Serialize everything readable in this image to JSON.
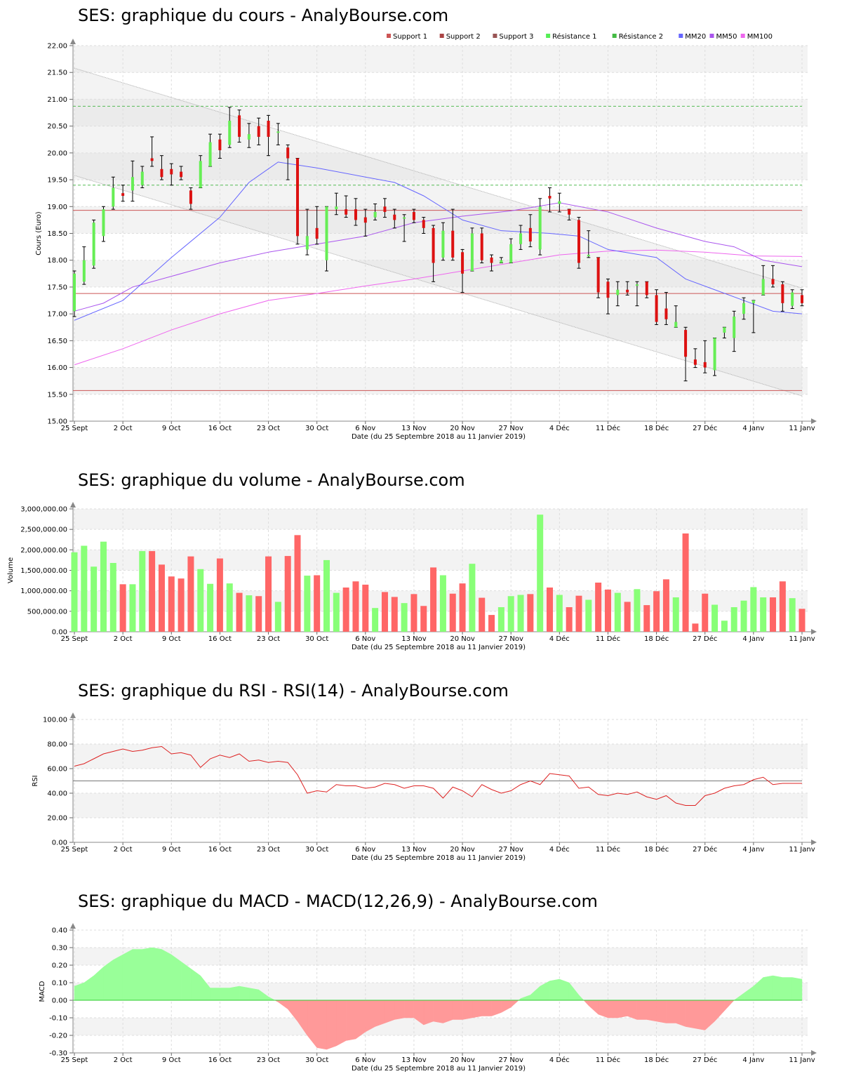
{
  "colors": {
    "up": "#66ee55",
    "down": "#dd1111",
    "vol_up": "#88ff77",
    "vol_down": "#ff6666",
    "support": "#cc5555",
    "resistance": "#55bb55",
    "mm20": "#6666ff",
    "mm50": "#aa55ee",
    "mm100": "#ee66ee",
    "rsi": "#dd2222",
    "macd_pos": "#99ff99",
    "macd_neg": "#ff9999"
  },
  "x_ticks": [
    "25 Sept",
    "2 Oct",
    "9 Oct",
    "16 Oct",
    "23 Oct",
    "30 Oct",
    "6 Nov",
    "13 Nov",
    "20 Nov",
    "27 Nov",
    "4 Déc",
    "11 Déc",
    "18 Déc",
    "27 Déc",
    "4 Janv",
    "11 Janv"
  ],
  "x_tick_days": [
    0,
    5,
    10,
    15,
    20,
    25,
    30,
    35,
    40,
    45,
    50,
    55,
    60,
    65,
    70,
    75
  ],
  "x_label": "Date (du 25 Septembre 2018 au 11 Janvier 2019)",
  "price": {
    "title": "SES: graphique du cours - AnalyBourse.com",
    "ylabel": "Cours (Euro)",
    "legend": [
      {
        "label": "Support 1",
        "color": "#cc5555"
      },
      {
        "label": "Support 2",
        "color": "#aa4444"
      },
      {
        "label": "Support 3",
        "color": "#995555"
      },
      {
        "label": "Résistance 1",
        "color": "#55ee55"
      },
      {
        "label": "Résistance 2",
        "color": "#44bb44"
      },
      {
        "label": "MM20",
        "color": "#6666ff"
      },
      {
        "label": "MM50",
        "color": "#aa55ee"
      },
      {
        "label": "MM100",
        "color": "#ee66ee"
      }
    ]
  },
  "volume": {
    "title": "SES: graphique du volume - AnalyBourse.com",
    "ylabel": "Volume"
  },
  "rsi": {
    "title": "SES: graphique du RSI - RSI(14) - AnalyBourse.com",
    "ylabel": "RSI"
  },
  "macd": {
    "title": "SES: graphique du MACD - MACD(12,26,9) - AnalyBourse.com",
    "ylabel": "MACD"
  },
  "chart_data": [
    {
      "type": "candlestick",
      "title": "SES: graphique du cours - AnalyBourse.com",
      "xlabel": "Date (du 25 Septembre 2018 au 11 Janvier 2019)",
      "ylabel": "Cours (Euro)",
      "ylim": [
        15.0,
        22.0
      ],
      "y_ticks": [
        "15.00",
        "15.50",
        "16.00",
        "16.50",
        "17.00",
        "17.50",
        "18.00",
        "18.50",
        "19.00",
        "19.50",
        "20.00",
        "20.50",
        "21.00",
        "21.50",
        "22.00"
      ],
      "candles": [
        [
          17.05,
          17.75,
          17.8,
          16.95
        ],
        [
          17.6,
          18.0,
          18.25,
          17.55
        ],
        [
          17.9,
          18.7,
          18.75,
          17.85
        ],
        [
          18.45,
          18.95,
          19.0,
          18.35
        ],
        [
          19.0,
          19.35,
          19.55,
          18.95
        ],
        [
          19.25,
          19.2,
          19.4,
          19.1
        ],
        [
          19.3,
          19.55,
          19.85,
          19.1
        ],
        [
          19.4,
          19.65,
          19.75,
          19.35
        ],
        [
          19.9,
          19.85,
          20.3,
          19.75
        ],
        [
          19.7,
          19.55,
          19.95,
          19.5
        ],
        [
          19.7,
          19.6,
          19.8,
          19.4
        ],
        [
          19.65,
          19.55,
          19.75,
          19.5
        ],
        [
          19.3,
          19.05,
          19.35,
          18.95
        ],
        [
          19.35,
          19.85,
          19.95,
          19.35
        ],
        [
          19.75,
          20.2,
          20.35,
          19.75
        ],
        [
          20.25,
          20.05,
          20.35,
          19.9
        ],
        [
          20.15,
          20.6,
          20.85,
          20.1
        ],
        [
          20.7,
          20.3,
          20.8,
          20.2
        ],
        [
          20.25,
          20.35,
          20.55,
          20.1
        ],
        [
          20.5,
          20.3,
          20.65,
          20.15
        ],
        [
          20.6,
          20.3,
          20.7,
          19.95
        ],
        [
          20.4,
          20.4,
          20.55,
          20.15
        ],
        [
          20.1,
          19.9,
          20.15,
          19.5
        ],
        [
          19.9,
          18.45,
          19.9,
          18.3
        ],
        [
          18.2,
          18.45,
          18.95,
          18.1
        ],
        [
          18.6,
          18.4,
          19.0,
          18.3
        ],
        [
          18.0,
          19.0,
          19.0,
          17.8
        ],
        [
          18.95,
          19.0,
          19.25,
          18.85
        ],
        [
          18.95,
          18.85,
          19.2,
          18.8
        ],
        [
          18.95,
          18.75,
          19.15,
          18.65
        ],
        [
          18.8,
          18.7,
          18.95,
          18.45
        ],
        [
          18.8,
          18.9,
          19.05,
          18.75
        ],
        [
          19.0,
          18.9,
          19.15,
          18.8
        ],
        [
          18.85,
          18.75,
          18.95,
          18.6
        ],
        [
          18.8,
          18.8,
          18.85,
          18.35
        ],
        [
          18.9,
          18.75,
          18.95,
          18.7
        ],
        [
          18.75,
          18.6,
          18.8,
          18.5
        ],
        [
          18.6,
          17.95,
          18.65,
          17.6
        ],
        [
          18.05,
          18.55,
          18.7,
          18.0
        ],
        [
          18.55,
          18.05,
          18.95,
          18.0
        ],
        [
          18.15,
          17.75,
          18.2,
          17.4
        ],
        [
          17.8,
          18.5,
          18.6,
          17.8
        ],
        [
          18.5,
          18.0,
          18.6,
          17.95
        ],
        [
          18.05,
          17.95,
          18.1,
          17.8
        ],
        [
          17.95,
          18.0,
          18.05,
          17.95
        ],
        [
          17.95,
          18.3,
          18.4,
          17.95
        ],
        [
          18.3,
          18.5,
          18.65,
          18.2
        ],
        [
          18.6,
          18.35,
          18.85,
          18.25
        ],
        [
          18.2,
          19.0,
          19.15,
          18.1
        ],
        [
          19.2,
          19.15,
          19.35,
          18.9
        ],
        [
          19.05,
          19.1,
          19.25,
          18.9
        ],
        [
          18.95,
          18.85,
          18.95,
          18.75
        ],
        [
          18.75,
          17.95,
          18.8,
          17.85
        ],
        [
          18.1,
          18.1,
          18.55,
          18.05
        ],
        [
          18.05,
          17.4,
          18.05,
          17.3
        ],
        [
          17.6,
          17.3,
          17.65,
          17.0
        ],
        [
          17.35,
          17.45,
          17.6,
          17.15
        ],
        [
          17.45,
          17.4,
          17.6,
          17.35
        ],
        [
          17.55,
          17.55,
          17.6,
          17.15
        ],
        [
          17.6,
          17.35,
          17.6,
          17.3
        ],
        [
          17.35,
          16.85,
          17.45,
          16.8
        ],
        [
          17.1,
          16.9,
          17.4,
          16.8
        ],
        [
          16.75,
          16.85,
          17.15,
          16.75
        ],
        [
          16.7,
          16.2,
          16.75,
          15.75
        ],
        [
          16.15,
          16.05,
          16.35,
          16.0
        ],
        [
          16.1,
          16.0,
          16.5,
          15.9
        ],
        [
          15.95,
          16.55,
          16.55,
          15.85
        ],
        [
          16.65,
          16.75,
          16.75,
          16.55
        ],
        [
          16.55,
          16.95,
          17.05,
          16.3
        ],
        [
          17.0,
          17.2,
          17.3,
          16.9
        ],
        [
          17.2,
          17.25,
          17.25,
          16.65
        ],
        [
          17.35,
          17.65,
          17.9,
          17.35
        ],
        [
          17.65,
          17.55,
          17.9,
          17.5
        ],
        [
          17.55,
          17.2,
          17.6,
          17.05
        ],
        [
          17.15,
          17.4,
          17.45,
          17.1
        ],
        [
          17.35,
          17.2,
          17.45,
          17.15
        ]
      ],
      "support_1": 17.38,
      "support_2": 18.93,
      "support_3": 15.57,
      "resistance_1": 19.4,
      "resistance_2": 20.87,
      "channel_upper": [
        21.58,
        17.48
      ],
      "channel_lower": [
        19.58,
        15.47
      ],
      "mm20": [
        [
          0,
          16.88
        ],
        [
          5,
          17.25
        ],
        [
          10,
          18.05
        ],
        [
          15,
          18.8
        ],
        [
          18,
          19.45
        ],
        [
          21,
          19.83
        ],
        [
          25,
          19.72
        ],
        [
          30,
          19.55
        ],
        [
          33,
          19.45
        ],
        [
          36,
          19.2
        ],
        [
          40,
          18.75
        ],
        [
          44,
          18.55
        ],
        [
          49,
          18.5
        ],
        [
          52,
          18.45
        ],
        [
          55,
          18.2
        ],
        [
          60,
          18.05
        ],
        [
          63,
          17.65
        ],
        [
          66,
          17.45
        ],
        [
          69,
          17.25
        ],
        [
          72,
          17.05
        ],
        [
          75,
          17.0
        ]
      ],
      "mm50": [
        [
          0,
          17.05
        ],
        [
          3,
          17.2
        ],
        [
          6,
          17.5
        ],
        [
          10,
          17.7
        ],
        [
          15,
          17.95
        ],
        [
          20,
          18.15
        ],
        [
          25,
          18.3
        ],
        [
          30,
          18.45
        ],
        [
          35,
          18.7
        ],
        [
          40,
          18.82
        ],
        [
          45,
          18.92
        ],
        [
          50,
          19.07
        ],
        [
          55,
          18.9
        ],
        [
          60,
          18.6
        ],
        [
          65,
          18.35
        ],
        [
          68,
          18.25
        ],
        [
          71,
          18.0
        ],
        [
          75,
          17.88
        ]
      ],
      "mm100": [
        [
          0,
          16.05
        ],
        [
          5,
          16.35
        ],
        [
          10,
          16.7
        ],
        [
          15,
          17.0
        ],
        [
          20,
          17.25
        ],
        [
          25,
          17.38
        ],
        [
          30,
          17.52
        ],
        [
          35,
          17.65
        ],
        [
          40,
          17.8
        ],
        [
          45,
          17.95
        ],
        [
          50,
          18.1
        ],
        [
          55,
          18.17
        ],
        [
          60,
          18.19
        ],
        [
          65,
          18.15
        ],
        [
          70,
          18.08
        ],
        [
          75,
          18.07
        ]
      ]
    },
    {
      "type": "bar",
      "title": "SES: graphique du volume - AnalyBourse.com",
      "xlabel": "Date (du 25 Septembre 2018 au 11 Janvier 2019)",
      "ylabel": "Volume",
      "ylim": [
        0,
        3000000
      ],
      "y_ticks": [
        "0.00",
        "500,000.00",
        "1,000,000.00",
        "1,500,000.00",
        "2,000,000.00",
        "2,500,000.00",
        "3,000,000.00"
      ],
      "values": [
        1940000,
        2100000,
        1590000,
        2200000,
        1680000,
        1160000,
        1160000,
        1970000,
        1970000,
        1640000,
        1350000,
        1300000,
        1840000,
        1530000,
        1170000,
        1790000,
        1180000,
        950000,
        890000,
        870000,
        1840000,
        730000,
        1850000,
        2360000,
        1370000,
        1380000,
        1750000,
        950000,
        1080000,
        1230000,
        1150000,
        580000,
        970000,
        850000,
        700000,
        920000,
        630000,
        1570000,
        1380000,
        930000,
        1180000,
        1660000,
        830000,
        410000,
        600000,
        870000,
        900000,
        920000,
        2860000,
        1080000,
        900000,
        600000,
        880000,
        780000,
        1200000,
        1030000,
        950000,
        730000,
        1040000,
        650000,
        990000,
        1280000,
        840000,
        2400000,
        200000,
        930000,
        660000,
        270000,
        600000,
        760000,
        1090000,
        840000,
        840000,
        1230000,
        820000,
        560000
      ]
    },
    {
      "type": "line",
      "title": "SES: graphique du RSI - RSI(14) - AnalyBourse.com",
      "xlabel": "Date (du 25 Septembre 2018 au 11 Janvier 2019)",
      "ylabel": "RSI",
      "ylim": [
        0,
        100
      ],
      "y_ticks": [
        "0.00",
        "20.00",
        "40.00",
        "60.00",
        "80.00",
        "100.00"
      ],
      "reference_line": 50,
      "values": [
        62,
        64,
        68,
        72,
        74,
        76,
        74,
        75,
        77,
        78,
        72,
        73,
        71,
        61,
        68,
        71,
        69,
        72,
        66,
        67,
        65,
        66,
        65,
        55,
        40,
        42,
        41,
        47,
        46,
        46,
        44,
        45,
        48,
        47,
        44,
        46,
        46,
        44,
        36,
        45,
        42,
        37,
        47,
        43,
        40,
        42,
        47,
        50,
        47,
        56,
        55,
        54,
        44,
        45,
        39,
        38,
        40,
        39,
        41,
        37,
        35,
        38,
        32,
        30,
        30,
        38,
        40,
        44,
        46,
        47,
        51,
        53,
        47,
        48,
        48,
        48
      ]
    },
    {
      "type": "area",
      "title": "SES: graphique du MACD - MACD(12,26,9) - AnalyBourse.com",
      "xlabel": "Date (du 25 Septembre 2018 au 11 Janvier 2019)",
      "ylabel": "MACD",
      "ylim": [
        -0.3,
        0.4
      ],
      "y_ticks": [
        "-0.30",
        "-0.20",
        "-0.10",
        "0.00",
        "0.10",
        "0.20",
        "0.30",
        "0.40"
      ],
      "values": [
        0.08,
        0.1,
        0.14,
        0.19,
        0.23,
        0.26,
        0.29,
        0.29,
        0.3,
        0.29,
        0.26,
        0.22,
        0.18,
        0.14,
        0.07,
        0.07,
        0.07,
        0.08,
        0.07,
        0.06,
        0.02,
        -0.01,
        -0.05,
        -0.12,
        -0.2,
        -0.27,
        -0.28,
        -0.26,
        -0.23,
        -0.22,
        -0.18,
        -0.15,
        -0.13,
        -0.11,
        -0.1,
        -0.1,
        -0.14,
        -0.12,
        -0.13,
        -0.11,
        -0.11,
        -0.1,
        -0.09,
        -0.09,
        -0.07,
        -0.04,
        0.01,
        0.03,
        0.08,
        0.11,
        0.12,
        0.1,
        0.03,
        -0.03,
        -0.08,
        -0.1,
        -0.1,
        -0.09,
        -0.11,
        -0.11,
        -0.12,
        -0.13,
        -0.13,
        -0.15,
        -0.16,
        -0.17,
        -0.12,
        -0.06,
        0.0,
        0.04,
        0.08,
        0.13,
        0.14,
        0.13,
        0.13,
        0.12
      ]
    }
  ]
}
